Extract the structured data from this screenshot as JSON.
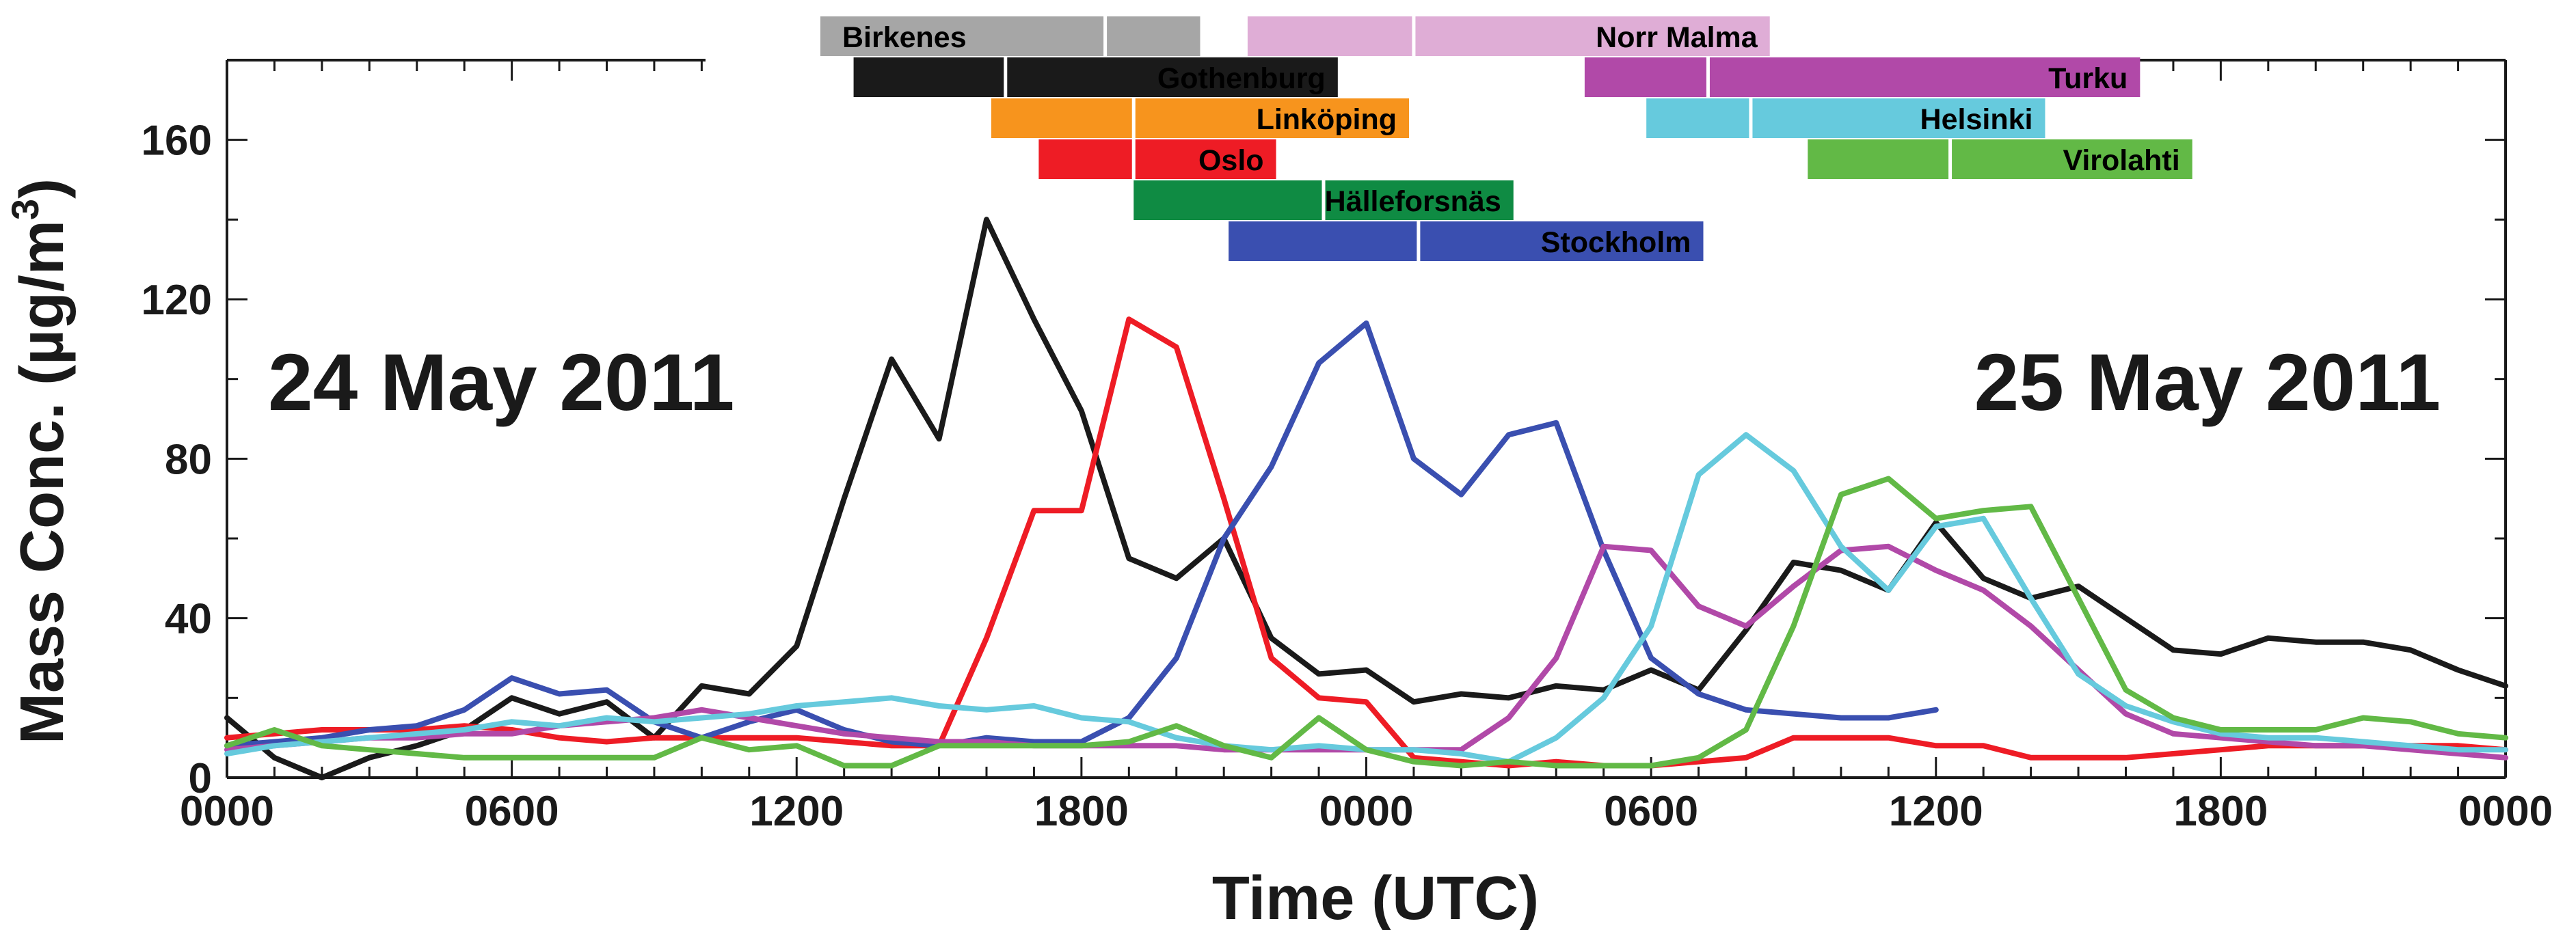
{
  "chart_data": {
    "type": "line",
    "title": "",
    "xlabel": "Time (UTC)",
    "ylabel": "Mass Conc. (µg/m³)",
    "ylabel_parts": {
      "main": "Mass Conc. (µg/m",
      "sup": "3",
      "close": ")"
    },
    "xlim": [
      0,
      48
    ],
    "ylim": [
      0,
      180
    ],
    "x_unit": "hours since 24 May 2011 0000 UTC",
    "x_ticks": [
      0,
      6,
      12,
      18,
      24,
      30,
      36,
      42,
      48
    ],
    "x_tick_labels": [
      "0000",
      "0600",
      "1200",
      "1800",
      "0000",
      "0600",
      "1200",
      "1800",
      "0000"
    ],
    "y_ticks": [
      0,
      40,
      80,
      120,
      160
    ],
    "y_tick_labels": [
      "0",
      "40",
      "80",
      "120",
      "160"
    ],
    "annotations": [
      "24 May 2011",
      "25 May 2011"
    ],
    "series": [
      {
        "name": "Gothenburg",
        "color": "#1a1a1a",
        "x": [
          0,
          1,
          2,
          3,
          4,
          5,
          6,
          7,
          8,
          9,
          10,
          11,
          12,
          13,
          14,
          15,
          16,
          17,
          18,
          19,
          20,
          21,
          22,
          23,
          24,
          25,
          26,
          27,
          28,
          29,
          30,
          31,
          32,
          33,
          34,
          35,
          36,
          37,
          38,
          39,
          40,
          41,
          42,
          43,
          44,
          45,
          46,
          47,
          48
        ],
        "y": [
          15,
          5,
          0,
          5,
          8,
          12,
          20,
          16,
          19,
          10,
          23,
          21,
          33,
          70,
          105,
          85,
          140,
          115,
          92,
          55,
          50,
          60,
          35,
          26,
          27,
          19,
          21,
          20,
          23,
          22,
          27,
          22,
          37,
          54,
          52,
          47,
          64,
          50,
          45,
          48,
          40,
          32,
          31,
          35,
          34,
          34,
          32,
          27,
          23
        ]
      },
      {
        "name": "Oslo",
        "color": "#ee1c25",
        "x": [
          0,
          1,
          2,
          3,
          4,
          5,
          6,
          7,
          8,
          9,
          10,
          11,
          12,
          13,
          14,
          15,
          16,
          17,
          18,
          19,
          20,
          21,
          22,
          23,
          24,
          25,
          26,
          27,
          28,
          29,
          30,
          31,
          32,
          33,
          34,
          35,
          36,
          37,
          38,
          39,
          40,
          41,
          42,
          43,
          44,
          45,
          46,
          47,
          48
        ],
        "y": [
          10,
          11,
          12,
          12,
          12,
          13,
          12,
          10,
          9,
          10,
          10,
          10,
          10,
          9,
          8,
          8,
          35,
          67,
          67,
          115,
          108,
          70,
          30,
          20,
          19,
          5,
          4,
          3,
          4,
          3,
          3,
          4,
          5,
          10,
          10,
          10,
          8,
          8,
          5,
          5,
          5,
          6,
          7,
          8,
          8,
          8,
          8,
          8,
          7
        ]
      },
      {
        "name": "Stockholm",
        "color": "#3a4fb0",
        "x": [
          0,
          1,
          2,
          3,
          4,
          5,
          6,
          7,
          8,
          9,
          10,
          11,
          12,
          13,
          14,
          15,
          16,
          17,
          18,
          19,
          20,
          21,
          22,
          23,
          24,
          25,
          26,
          27,
          28,
          29,
          30,
          31,
          32,
          33,
          34,
          35,
          36
        ],
        "y": [
          8,
          9,
          10,
          12,
          13,
          17,
          25,
          21,
          22,
          14,
          10,
          14,
          17,
          12,
          9,
          8,
          10,
          9,
          9,
          15,
          30,
          60,
          78,
          104,
          114,
          80,
          71,
          86,
          89,
          57,
          30,
          21,
          17,
          16,
          15,
          15,
          17
        ]
      },
      {
        "name": "Turku",
        "color": "#b149a8",
        "x": [
          0,
          1,
          2,
          3,
          4,
          5,
          6,
          7,
          8,
          9,
          10,
          11,
          12,
          13,
          14,
          15,
          16,
          17,
          18,
          19,
          20,
          21,
          22,
          23,
          24,
          25,
          26,
          27,
          28,
          29,
          30,
          31,
          32,
          33,
          34,
          35,
          36,
          37,
          38,
          39,
          40,
          41,
          42,
          43,
          44,
          45,
          46,
          47,
          48
        ],
        "y": [
          7,
          8,
          9,
          10,
          10,
          11,
          11,
          13,
          14,
          15,
          17,
          15,
          13,
          11,
          10,
          9,
          9,
          8,
          8,
          8,
          8,
          7,
          7,
          7,
          7,
          7,
          7,
          15,
          30,
          58,
          57,
          43,
          38,
          48,
          57,
          58,
          52,
          47,
          38,
          27,
          16,
          11,
          10,
          9,
          8,
          8,
          7,
          6,
          5
        ]
      },
      {
        "name": "Helsinki",
        "color": "#66cadd",
        "x": [
          0,
          1,
          2,
          3,
          4,
          5,
          6,
          7,
          8,
          9,
          10,
          11,
          12,
          13,
          14,
          15,
          16,
          17,
          18,
          19,
          20,
          21,
          22,
          23,
          24,
          25,
          26,
          27,
          28,
          29,
          30,
          31,
          32,
          33,
          34,
          35,
          36,
          37,
          38,
          39,
          40,
          41,
          42,
          43,
          44,
          45,
          46,
          47,
          48
        ],
        "y": [
          6,
          8,
          9,
          10,
          11,
          12,
          14,
          13,
          15,
          14,
          15,
          16,
          18,
          19,
          20,
          18,
          17,
          18,
          15,
          14,
          10,
          8,
          7,
          8,
          7,
          7,
          6,
          4,
          10,
          20,
          38,
          76,
          86,
          77,
          58,
          47,
          63,
          65,
          45,
          26,
          18,
          14,
          11,
          10,
          10,
          9,
          8,
          7,
          7
        ]
      },
      {
        "name": "Virolahti",
        "color": "#62b946",
        "x": [
          0,
          1,
          2,
          3,
          4,
          5,
          6,
          7,
          8,
          9,
          10,
          11,
          12,
          13,
          14,
          15,
          16,
          17,
          18,
          19,
          20,
          21,
          22,
          23,
          24,
          25,
          26,
          27,
          28,
          29,
          30,
          31,
          32,
          33,
          34,
          35,
          36,
          37,
          38,
          39,
          40,
          41,
          42,
          43,
          44,
          45,
          46,
          47,
          48
        ],
        "y": [
          8,
          12,
          8,
          7,
          6,
          5,
          5,
          5,
          5,
          5,
          10,
          7,
          8,
          3,
          3,
          8,
          8,
          8,
          8,
          9,
          13,
          8,
          5,
          15,
          7,
          4,
          3,
          4,
          3,
          3,
          3,
          5,
          12,
          38,
          71,
          75,
          65,
          67,
          68,
          45,
          22,
          15,
          12,
          12,
          12,
          15,
          14,
          11,
          10
        ]
      }
    ],
    "residence_bars": {
      "description": "Horizontal bars at top of plot showing time ranges per site; white tick marks inside bars",
      "bars": [
        {
          "name": "Birkenes",
          "color": "#a6a6a6",
          "label_color": "#ffffff",
          "start": 12.5,
          "end": 20.5,
          "mark": 18.5
        },
        {
          "name": "Norr Malma",
          "color": "#dfadd6",
          "label_color": "#000000",
          "start": 21.5,
          "end": 32.5,
          "mark": 25
        },
        {
          "name": "Gothenburg",
          "color": "#1a1a1a",
          "label_color": "#ffffff",
          "start": 13.2,
          "end": 23.4,
          "mark": 16.4
        },
        {
          "name": "Turku",
          "color": "#b149a8",
          "label_color": "#000000",
          "start": 28.6,
          "end": 40.3,
          "mark": 31.2
        },
        {
          "name": "Linköping",
          "color": "#f7941d",
          "label_color": "#000000",
          "start": 16.1,
          "end": 24.9,
          "mark": 19.1
        },
        {
          "name": "Helsinki",
          "color": "#66cadd",
          "label_color": "#000000",
          "start": 29.9,
          "end": 38.3,
          "mark": 32.1
        },
        {
          "name": "Oslo",
          "color": "#ee1c25",
          "label_color": "#000000",
          "start": 17.1,
          "end": 22.1,
          "mark": 19.1
        },
        {
          "name": "Virolahti",
          "color": "#62b946",
          "label_color": "#000000",
          "start": 33.3,
          "end": 41.4,
          "mark": 36.3
        },
        {
          "name": "Hälleforsnäs",
          "color": "#0f8b43",
          "label_color": "#ffffff",
          "start": 19.1,
          "end": 27.1,
          "mark": 23.1
        },
        {
          "name": "Stockholm",
          "color": "#3a4fb0",
          "label_color": "#ffffff",
          "start": 21.1,
          "end": 31.1,
          "mark": 25.1
        }
      ]
    }
  }
}
